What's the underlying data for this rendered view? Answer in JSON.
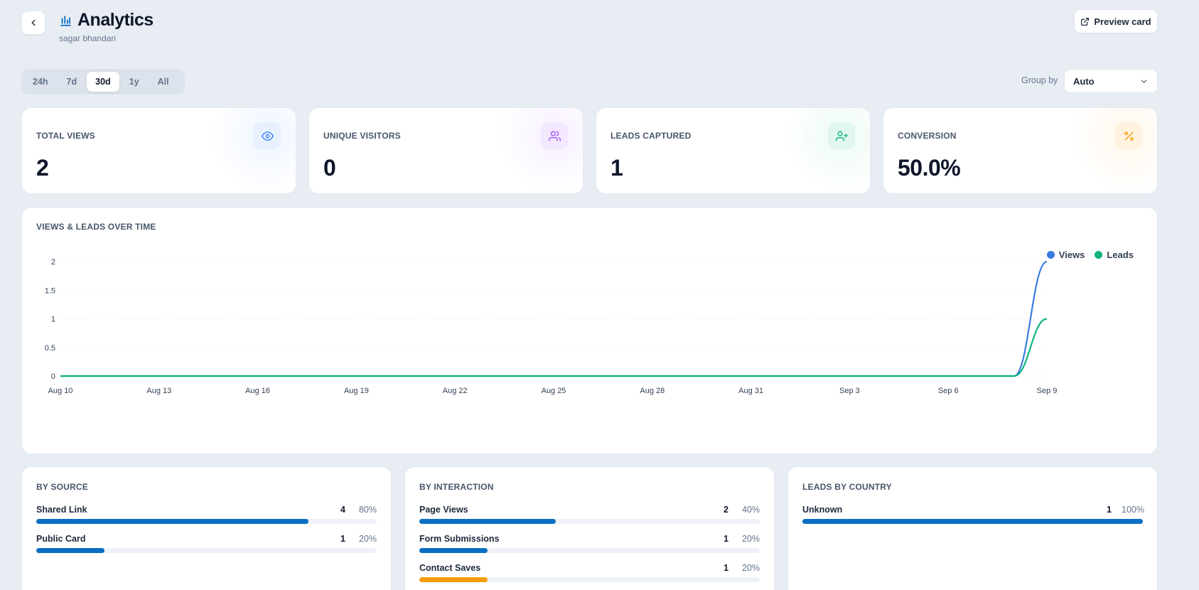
{
  "header": {
    "title": "Analytics",
    "subtitle": "sagar bhandari",
    "preview_label": "Preview card",
    "back_icon": "chevron-left-icon",
    "title_icon": "bar-chart-icon"
  },
  "range": {
    "options": [
      "24h",
      "7d",
      "30d",
      "1y",
      "All"
    ],
    "selected": "30d"
  },
  "group_by": {
    "label": "Group by",
    "value": "Auto"
  },
  "stats": [
    {
      "label": "TOTAL VIEWS",
      "value": "2",
      "icon": "eye-icon",
      "color": "#3b82f6",
      "bg": "#e8f0fe",
      "glow": "#eef4ff"
    },
    {
      "label": "UNIQUE VISITORS",
      "value": "0",
      "icon": "users-icon",
      "color": "#a855f7",
      "bg": "#f3e8ff",
      "glow": "#f7f0ff"
    },
    {
      "label": "LEADS CAPTURED",
      "value": "1",
      "icon": "user-plus-icon",
      "color": "#10b981",
      "bg": "#e1f7ee",
      "glow": "#ecfaf3"
    },
    {
      "label": "CONVERSION",
      "value": "50.0%",
      "icon": "percent-icon",
      "color": "#f59e0b",
      "bg": "#fff3e0",
      "glow": "#fff7ec"
    }
  ],
  "chart": {
    "title": "VIEWS & LEADS OVER TIME",
    "legend": [
      "Views",
      "Leads"
    ]
  },
  "chart_data": {
    "type": "line",
    "x": [
      "Aug 10",
      "Aug 11",
      "Aug 12",
      "Aug 13",
      "Aug 14",
      "Aug 15",
      "Aug 16",
      "Aug 17",
      "Aug 18",
      "Aug 19",
      "Aug 20",
      "Aug 21",
      "Aug 22",
      "Aug 23",
      "Aug 24",
      "Aug 25",
      "Aug 26",
      "Aug 27",
      "Aug 28",
      "Aug 29",
      "Aug 30",
      "Aug 31",
      "Sep 1",
      "Sep 2",
      "Sep 3",
      "Sep 4",
      "Sep 5",
      "Sep 6",
      "Sep 7",
      "Sep 8",
      "Sep 9"
    ],
    "x_ticks": [
      "Aug 10",
      "Aug 13",
      "Aug 16",
      "Aug 19",
      "Aug 22",
      "Aug 25",
      "Aug 28",
      "Aug 31",
      "Sep 3",
      "Sep 6",
      "Sep 9"
    ],
    "series": [
      {
        "name": "Views",
        "color": "#3b7be0",
        "values": [
          0,
          0,
          0,
          0,
          0,
          0,
          0,
          0,
          0,
          0,
          0,
          0,
          0,
          0,
          0,
          0,
          0,
          0,
          0,
          0,
          0,
          0,
          0,
          0,
          0,
          0,
          0,
          0,
          0,
          0,
          2
        ]
      },
      {
        "name": "Leads",
        "color": "#10b37f",
        "values": [
          0,
          0,
          0,
          0,
          0,
          0,
          0,
          0,
          0,
          0,
          0,
          0,
          0,
          0,
          0,
          0,
          0,
          0,
          0,
          0,
          0,
          0,
          0,
          0,
          0,
          0,
          0,
          0,
          0,
          0,
          1
        ]
      }
    ],
    "ylim": [
      0,
      2
    ],
    "y_ticks": [
      "0",
      "0.5",
      "1",
      "1.5",
      "2"
    ],
    "grid": true,
    "legend_position": "top-right"
  },
  "breakdowns": [
    {
      "title": "BY SOURCE",
      "items": [
        {
          "name": "Shared Link",
          "count": "4",
          "pct": "80%",
          "fraction": 0.8,
          "color": "#0a6fc2"
        },
        {
          "name": "Public Card",
          "count": "1",
          "pct": "20%",
          "fraction": 0.2,
          "color": "#0a6fc2"
        }
      ]
    },
    {
      "title": "BY INTERACTION",
      "items": [
        {
          "name": "Page Views",
          "count": "2",
          "pct": "40%",
          "fraction": 0.4,
          "color": "#0a6fc2"
        },
        {
          "name": "Form Submissions",
          "count": "1",
          "pct": "20%",
          "fraction": 0.2,
          "color": "#0a6fc2"
        },
        {
          "name": "Contact Saves",
          "count": "1",
          "pct": "20%",
          "fraction": 0.2,
          "color": "#f59e0b"
        }
      ]
    },
    {
      "title": "LEADS BY COUNTRY",
      "items": [
        {
          "name": "Unknown",
          "count": "1",
          "pct": "100%",
          "fraction": 1.0,
          "color": "#0a6fc2"
        }
      ]
    }
  ]
}
